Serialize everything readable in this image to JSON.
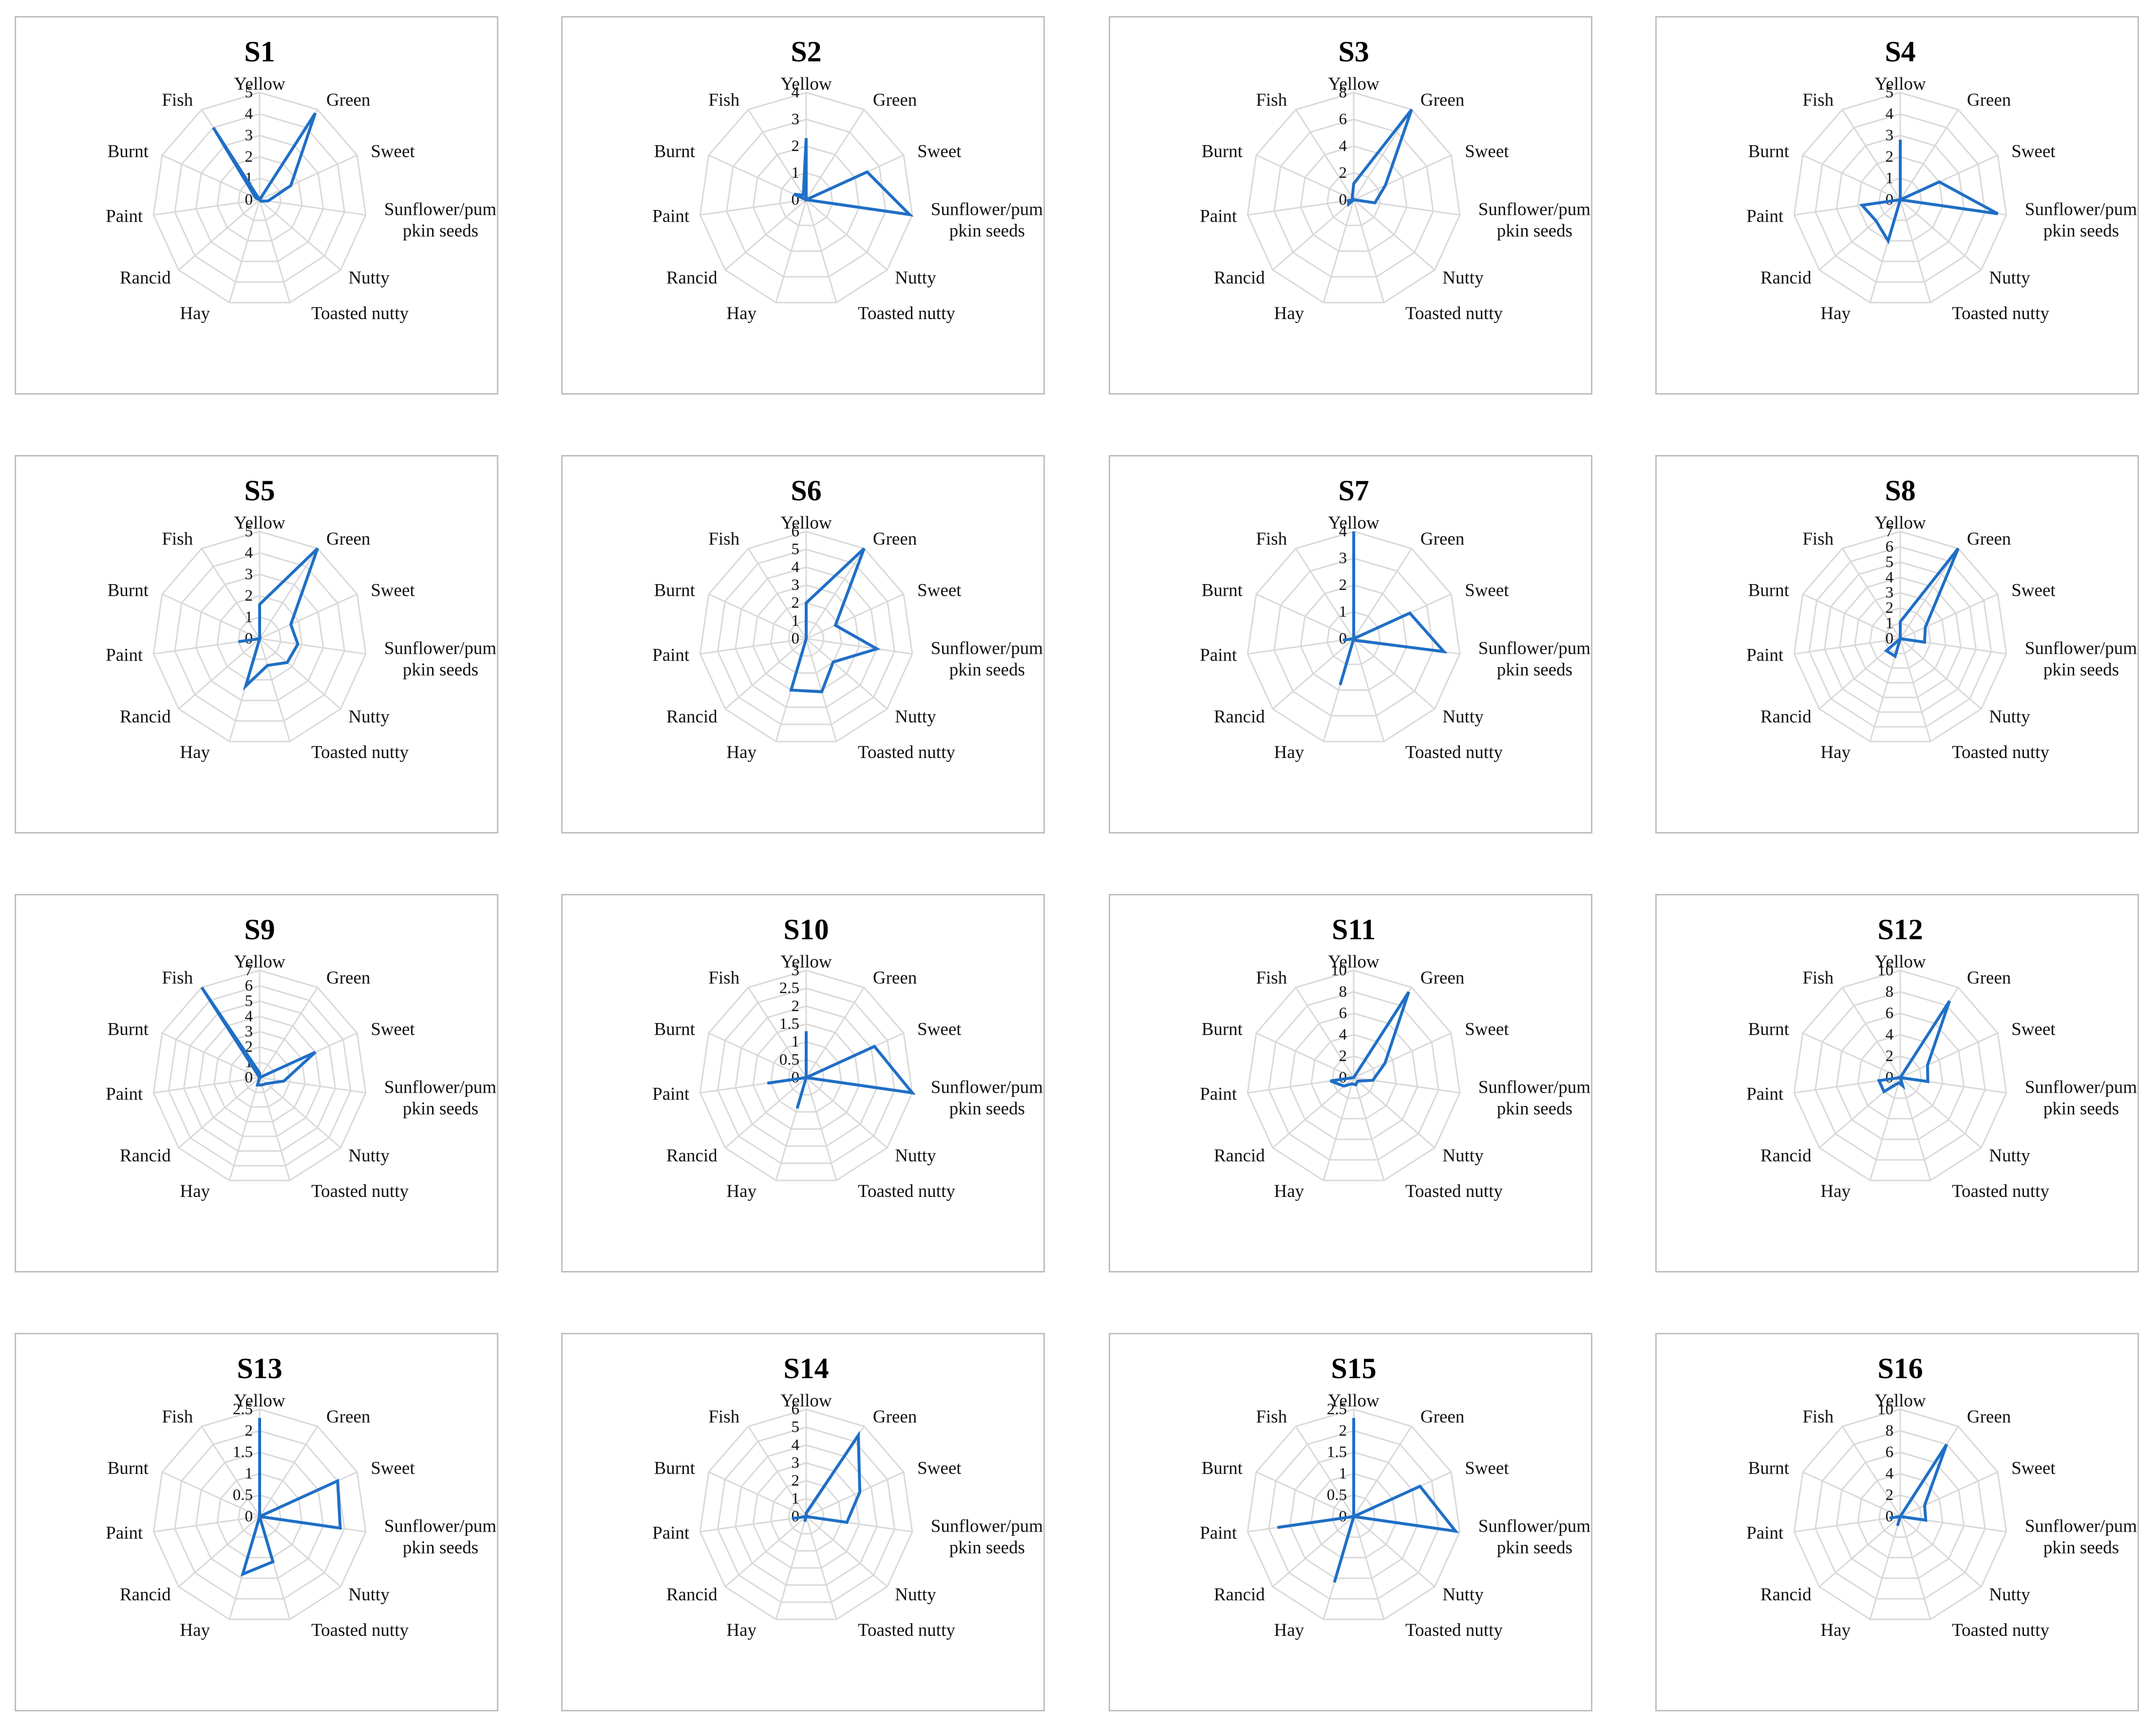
{
  "chart_data": [
    {
      "type": "radar",
      "title": "S1",
      "axes": [
        "Yellow",
        "Green",
        "Sweet",
        "Sunflower/pumpkin seeds",
        "Nutty",
        "Toasted nutty",
        "Hay",
        "Rancid",
        "Paint",
        "Burnt",
        "Fish"
      ],
      "ticks": [
        "0",
        "1",
        "2",
        "3",
        "4",
        "5"
      ],
      "rmax": 5,
      "series": [
        {
          "values": [
            0,
            4.8,
            1.6,
            0.4,
            0.1,
            0,
            0,
            0,
            0,
            0.2,
            4
          ]
        }
      ]
    },
    {
      "type": "radar",
      "title": "S2",
      "axes": [
        "Yellow",
        "Green",
        "Sweet",
        "Sunflower/pumpkin seeds",
        "Nutty",
        "Toasted nutty",
        "Hay",
        "Rancid",
        "Paint",
        "Burnt",
        "Fish"
      ],
      "ticks": [
        "0",
        "1",
        "2",
        "3",
        "4"
      ],
      "rmax": 4,
      "series": [
        {
          "values": [
            2.3,
            0,
            2.5,
            3.9,
            0,
            0,
            0,
            0,
            0,
            0.5,
            0.2
          ]
        }
      ]
    },
    {
      "type": "radar",
      "title": "S3",
      "axes": [
        "Yellow",
        "Green",
        "Sweet",
        "Sunflower/pumpkin seeds",
        "Nutty",
        "Toasted nutty",
        "Hay",
        "Rancid",
        "Paint",
        "Burnt",
        "Fish"
      ],
      "ticks": [
        "0",
        "2",
        "4",
        "6",
        "8"
      ],
      "rmax": 8,
      "series": [
        {
          "values": [
            1.2,
            8,
            2.6,
            1.6,
            0,
            0,
            0,
            0.5,
            0.4,
            0,
            0.2
          ]
        }
      ]
    },
    {
      "type": "radar",
      "title": "S4",
      "axes": [
        "Yellow",
        "Green",
        "Sweet",
        "Sunflower/pumpkin seeds",
        "Nutty",
        "Toasted nutty",
        "Hay",
        "Rancid",
        "Paint",
        "Burnt",
        "Fish"
      ],
      "ticks": [
        "0",
        "1",
        "2",
        "3",
        "4",
        "5"
      ],
      "rmax": 5,
      "series": [
        {
          "values": [
            2.8,
            0,
            2,
            4.6,
            0,
            0,
            2,
            1.5,
            1.8,
            0,
            0
          ]
        }
      ]
    },
    {
      "type": "radar",
      "title": "S5",
      "axes": [
        "Yellow",
        "Green",
        "Sweet",
        "Sunflower/pumpkin seeds",
        "Nutty",
        "Toasted nutty",
        "Hay",
        "Rancid",
        "Paint",
        "Burnt",
        "Fish"
      ],
      "ticks": [
        "0",
        "1",
        "2",
        "3",
        "4",
        "5"
      ],
      "rmax": 5,
      "series": [
        {
          "values": [
            1.6,
            5,
            1.6,
            1.8,
            1.7,
            1.3,
            2.3,
            0,
            1,
            0,
            0
          ]
        }
      ]
    },
    {
      "type": "radar",
      "title": "S6",
      "axes": [
        "Yellow",
        "Green",
        "Sweet",
        "Sunflower/pumpkin seeds",
        "Nutty",
        "Toasted nutty",
        "Hay",
        "Rancid",
        "Paint",
        "Burnt",
        "Fish"
      ],
      "ticks": [
        "0",
        "1",
        "2",
        "3",
        "4",
        "5",
        "6"
      ],
      "rmax": 6,
      "series": [
        {
          "values": [
            2,
            6,
            1.8,
            4,
            2,
            3.1,
            3,
            0,
            0,
            0,
            0
          ]
        }
      ]
    },
    {
      "type": "radar",
      "title": "S7",
      "axes": [
        "Yellow",
        "Green",
        "Sweet",
        "Sunflower/pumpkin seeds",
        "Nutty",
        "Toasted nutty",
        "Hay",
        "Rancid",
        "Paint",
        "Burnt",
        "Fish"
      ],
      "ticks": [
        "0",
        "1",
        "2",
        "3",
        "4"
      ],
      "rmax": 4,
      "series": [
        {
          "values": [
            4,
            0,
            2.3,
            3.4,
            0.1,
            0,
            1.8,
            0,
            0.4,
            0,
            0
          ]
        }
      ]
    },
    {
      "type": "radar",
      "title": "S8",
      "axes": [
        "Yellow",
        "Green",
        "Sweet",
        "Sunflower/pumpkin seeds",
        "Nutty",
        "Toasted nutty",
        "Hay",
        "Rancid",
        "Paint",
        "Burnt",
        "Fish"
      ],
      "ticks": [
        "0",
        "1",
        "2",
        "3",
        "4",
        "5",
        "6",
        "7"
      ],
      "rmax": 7,
      "series": [
        {
          "values": [
            1.1,
            7,
            1.8,
            1.6,
            0,
            0,
            1.2,
            1.2,
            0,
            0,
            0
          ]
        }
      ]
    },
    {
      "type": "radar",
      "title": "S9",
      "axes": [
        "Yellow",
        "Green",
        "Sweet",
        "Sunflower/pumpkin seeds",
        "Nutty",
        "Toasted nutty",
        "Hay",
        "Rancid",
        "Paint",
        "Burnt",
        "Fish"
      ],
      "ticks": [
        "0",
        "1",
        "2",
        "3",
        "4",
        "5",
        "6",
        "7"
      ],
      "rmax": 7,
      "series": [
        {
          "values": [
            0.3,
            0,
            4,
            1.6,
            0.6,
            0.5,
            0.5,
            0,
            0,
            0,
            7
          ]
        }
      ]
    },
    {
      "type": "radar",
      "title": "S10",
      "axes": [
        "Yellow",
        "Green",
        "Sweet",
        "Sunflower/pumpkin seeds",
        "Nutty",
        "Toasted nutty",
        "Hay",
        "Rancid",
        "Paint",
        "Burnt",
        "Fish"
      ],
      "ticks": [
        "0",
        "0.5",
        "1",
        "1.5",
        "2",
        "2.5",
        "3"
      ],
      "rmax": 3,
      "series": [
        {
          "values": [
            1.3,
            0,
            2.1,
            3,
            0,
            0,
            0.9,
            0,
            1.1,
            0,
            0
          ]
        }
      ]
    },
    {
      "type": "radar",
      "title": "S11",
      "axes": [
        "Yellow",
        "Green",
        "Sweet",
        "Sunflower/pumpkin seeds",
        "Nutty",
        "Toasted nutty",
        "Hay",
        "Rancid",
        "Paint",
        "Burnt",
        "Fish"
      ],
      "ticks": [
        "0",
        "2",
        "4",
        "6",
        "8",
        "10"
      ],
      "rmax": 10,
      "series": [
        {
          "values": [
            0,
            9.5,
            3.2,
            1.8,
            0.5,
            0.7,
            0.6,
            1.2,
            2.2,
            0,
            0
          ]
        }
      ]
    },
    {
      "type": "radar",
      "title": "S12",
      "axes": [
        "Yellow",
        "Green",
        "Sweet",
        "Sunflower/pumpkin seeds",
        "Nutty",
        "Toasted nutty",
        "Hay",
        "Rancid",
        "Paint",
        "Burnt",
        "Fish"
      ],
      "ticks": [
        "0",
        "2",
        "4",
        "6",
        "8",
        "10"
      ],
      "rmax": 10,
      "series": [
        {
          "values": [
            0,
            8.5,
            2.8,
            2.6,
            0,
            0.8,
            0.5,
            2,
            2,
            0,
            0
          ]
        }
      ]
    },
    {
      "type": "radar",
      "title": "S13",
      "axes": [
        "Yellow",
        "Green",
        "Sweet",
        "Sunflower/pumpkin seeds",
        "Nutty",
        "Toasted nutty",
        "Hay",
        "Rancid",
        "Paint",
        "Burnt",
        "Fish"
      ],
      "ticks": [
        "0",
        "0.5",
        "1",
        "1.5",
        "2",
        "2.5"
      ],
      "rmax": 2.5,
      "series": [
        {
          "values": [
            2.3,
            0,
            2,
            1.9,
            0,
            1.1,
            1.4,
            0,
            0,
            0,
            0
          ]
        }
      ]
    },
    {
      "type": "radar",
      "title": "S14",
      "axes": [
        "Yellow",
        "Green",
        "Sweet",
        "Sunflower/pumpkin seeds",
        "Nutty",
        "Toasted nutty",
        "Hay",
        "Rancid",
        "Paint",
        "Burnt",
        "Fish"
      ],
      "ticks": [
        "0",
        "1",
        "2",
        "3",
        "4",
        "5",
        "6"
      ],
      "rmax": 6,
      "series": [
        {
          "values": [
            0.2,
            5.4,
            3.3,
            2.3,
            0,
            0,
            0.3,
            0,
            0.8,
            0,
            0
          ]
        }
      ]
    },
    {
      "type": "radar",
      "title": "S15",
      "axes": [
        "Yellow",
        "Green",
        "Sweet",
        "Sunflower/pumpkin seeds",
        "Nutty",
        "Toasted nutty",
        "Hay",
        "Rancid",
        "Paint",
        "Burnt",
        "Fish"
      ],
      "ticks": [
        "0",
        "0.5",
        "1",
        "1.5",
        "2",
        "2.5"
      ],
      "rmax": 2.5,
      "series": [
        {
          "values": [
            2.3,
            0,
            1.7,
            2.4,
            0,
            0,
            1.6,
            0,
            1.8,
            0,
            0
          ]
        }
      ]
    },
    {
      "type": "radar",
      "title": "S16",
      "axes": [
        "Yellow",
        "Green",
        "Sweet",
        "Sunflower/pumpkin seeds",
        "Nutty",
        "Toasted nutty",
        "Hay",
        "Rancid",
        "Paint",
        "Burnt",
        "Fish"
      ],
      "ticks": [
        "0",
        "2",
        "4",
        "6",
        "8",
        "10"
      ],
      "rmax": 10,
      "series": [
        {
          "values": [
            0,
            8,
            2.5,
            2.4,
            0,
            0,
            0.9,
            0,
            1,
            0,
            0
          ]
        }
      ]
    }
  ],
  "style": {
    "series_color": "#1f6fc6",
    "grid_color": "#d9d9d9",
    "border_color": "#bfbfbf"
  }
}
